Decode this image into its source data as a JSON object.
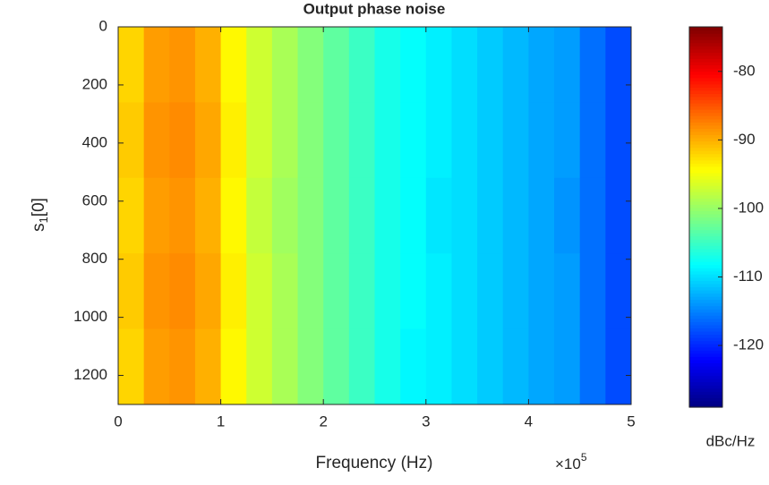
{
  "chart_data": {
    "type": "heatmap",
    "title": "Output phase noise",
    "xlabel": "Frequency (Hz)",
    "x_multiplier": "×10",
    "x_multiplier_exponent": "5",
    "ylabel_parts": [
      "s",
      "1",
      "[0]"
    ],
    "colorbar_label": "dBc/Hz",
    "colormap": "jet",
    "x_edges": [
      0,
      25000,
      50000,
      75000,
      100000,
      125000,
      150000,
      175000,
      200000,
      225000,
      250000,
      275000,
      300000,
      325000,
      350000,
      375000,
      400000,
      425000,
      450000,
      475000,
      500000
    ],
    "y_edges": [
      0,
      260,
      520,
      780,
      1040,
      1300
    ],
    "z": [
      [
        -92,
        -89,
        -88.5,
        -90,
        -94,
        -97,
        -99,
        -101,
        -103,
        -105,
        -107,
        -108,
        -109,
        -110,
        -111,
        -112,
        -113,
        -113.5,
        -116,
        -118
      ],
      [
        -91.5,
        -88.5,
        -88,
        -89.5,
        -93.5,
        -97,
        -99,
        -101,
        -103,
        -105,
        -107,
        -108,
        -109,
        -110,
        -111,
        -112,
        -113,
        -113.5,
        -116,
        -118
      ],
      [
        -92,
        -89,
        -88.5,
        -90,
        -94,
        -97.5,
        -99.5,
        -101,
        -103,
        -105,
        -107,
        -108,
        -109.5,
        -110,
        -111,
        -112,
        -113,
        -114,
        -116,
        -118
      ],
      [
        -91.5,
        -88.5,
        -88,
        -89.5,
        -93.5,
        -97,
        -99,
        -101,
        -103,
        -105,
        -107,
        -108,
        -109,
        -110,
        -111,
        -112,
        -113,
        -113.5,
        -116,
        -118
      ],
      [
        -92,
        -89,
        -88.5,
        -90,
        -94,
        -97,
        -99,
        -101,
        -103,
        -105,
        -107,
        -108.5,
        -109,
        -110,
        -111,
        -112,
        -113,
        -113.5,
        -116,
        -118
      ]
    ],
    "xlim": [
      0,
      500000
    ],
    "xticks": [
      {
        "value": 0,
        "label": "0"
      },
      {
        "value": 100000,
        "label": "1"
      },
      {
        "value": 200000,
        "label": "2"
      },
      {
        "value": 300000,
        "label": "3"
      },
      {
        "value": 400000,
        "label": "4"
      },
      {
        "value": 500000,
        "label": "5"
      }
    ],
    "ylim": [
      0,
      1300
    ],
    "y_reversed": true,
    "yticks": [
      0,
      200,
      400,
      600,
      800,
      1000,
      1200
    ],
    "clim": [
      -129,
      -73.5
    ],
    "cticks": [
      -120,
      -110,
      -100,
      -90,
      -80
    ]
  }
}
